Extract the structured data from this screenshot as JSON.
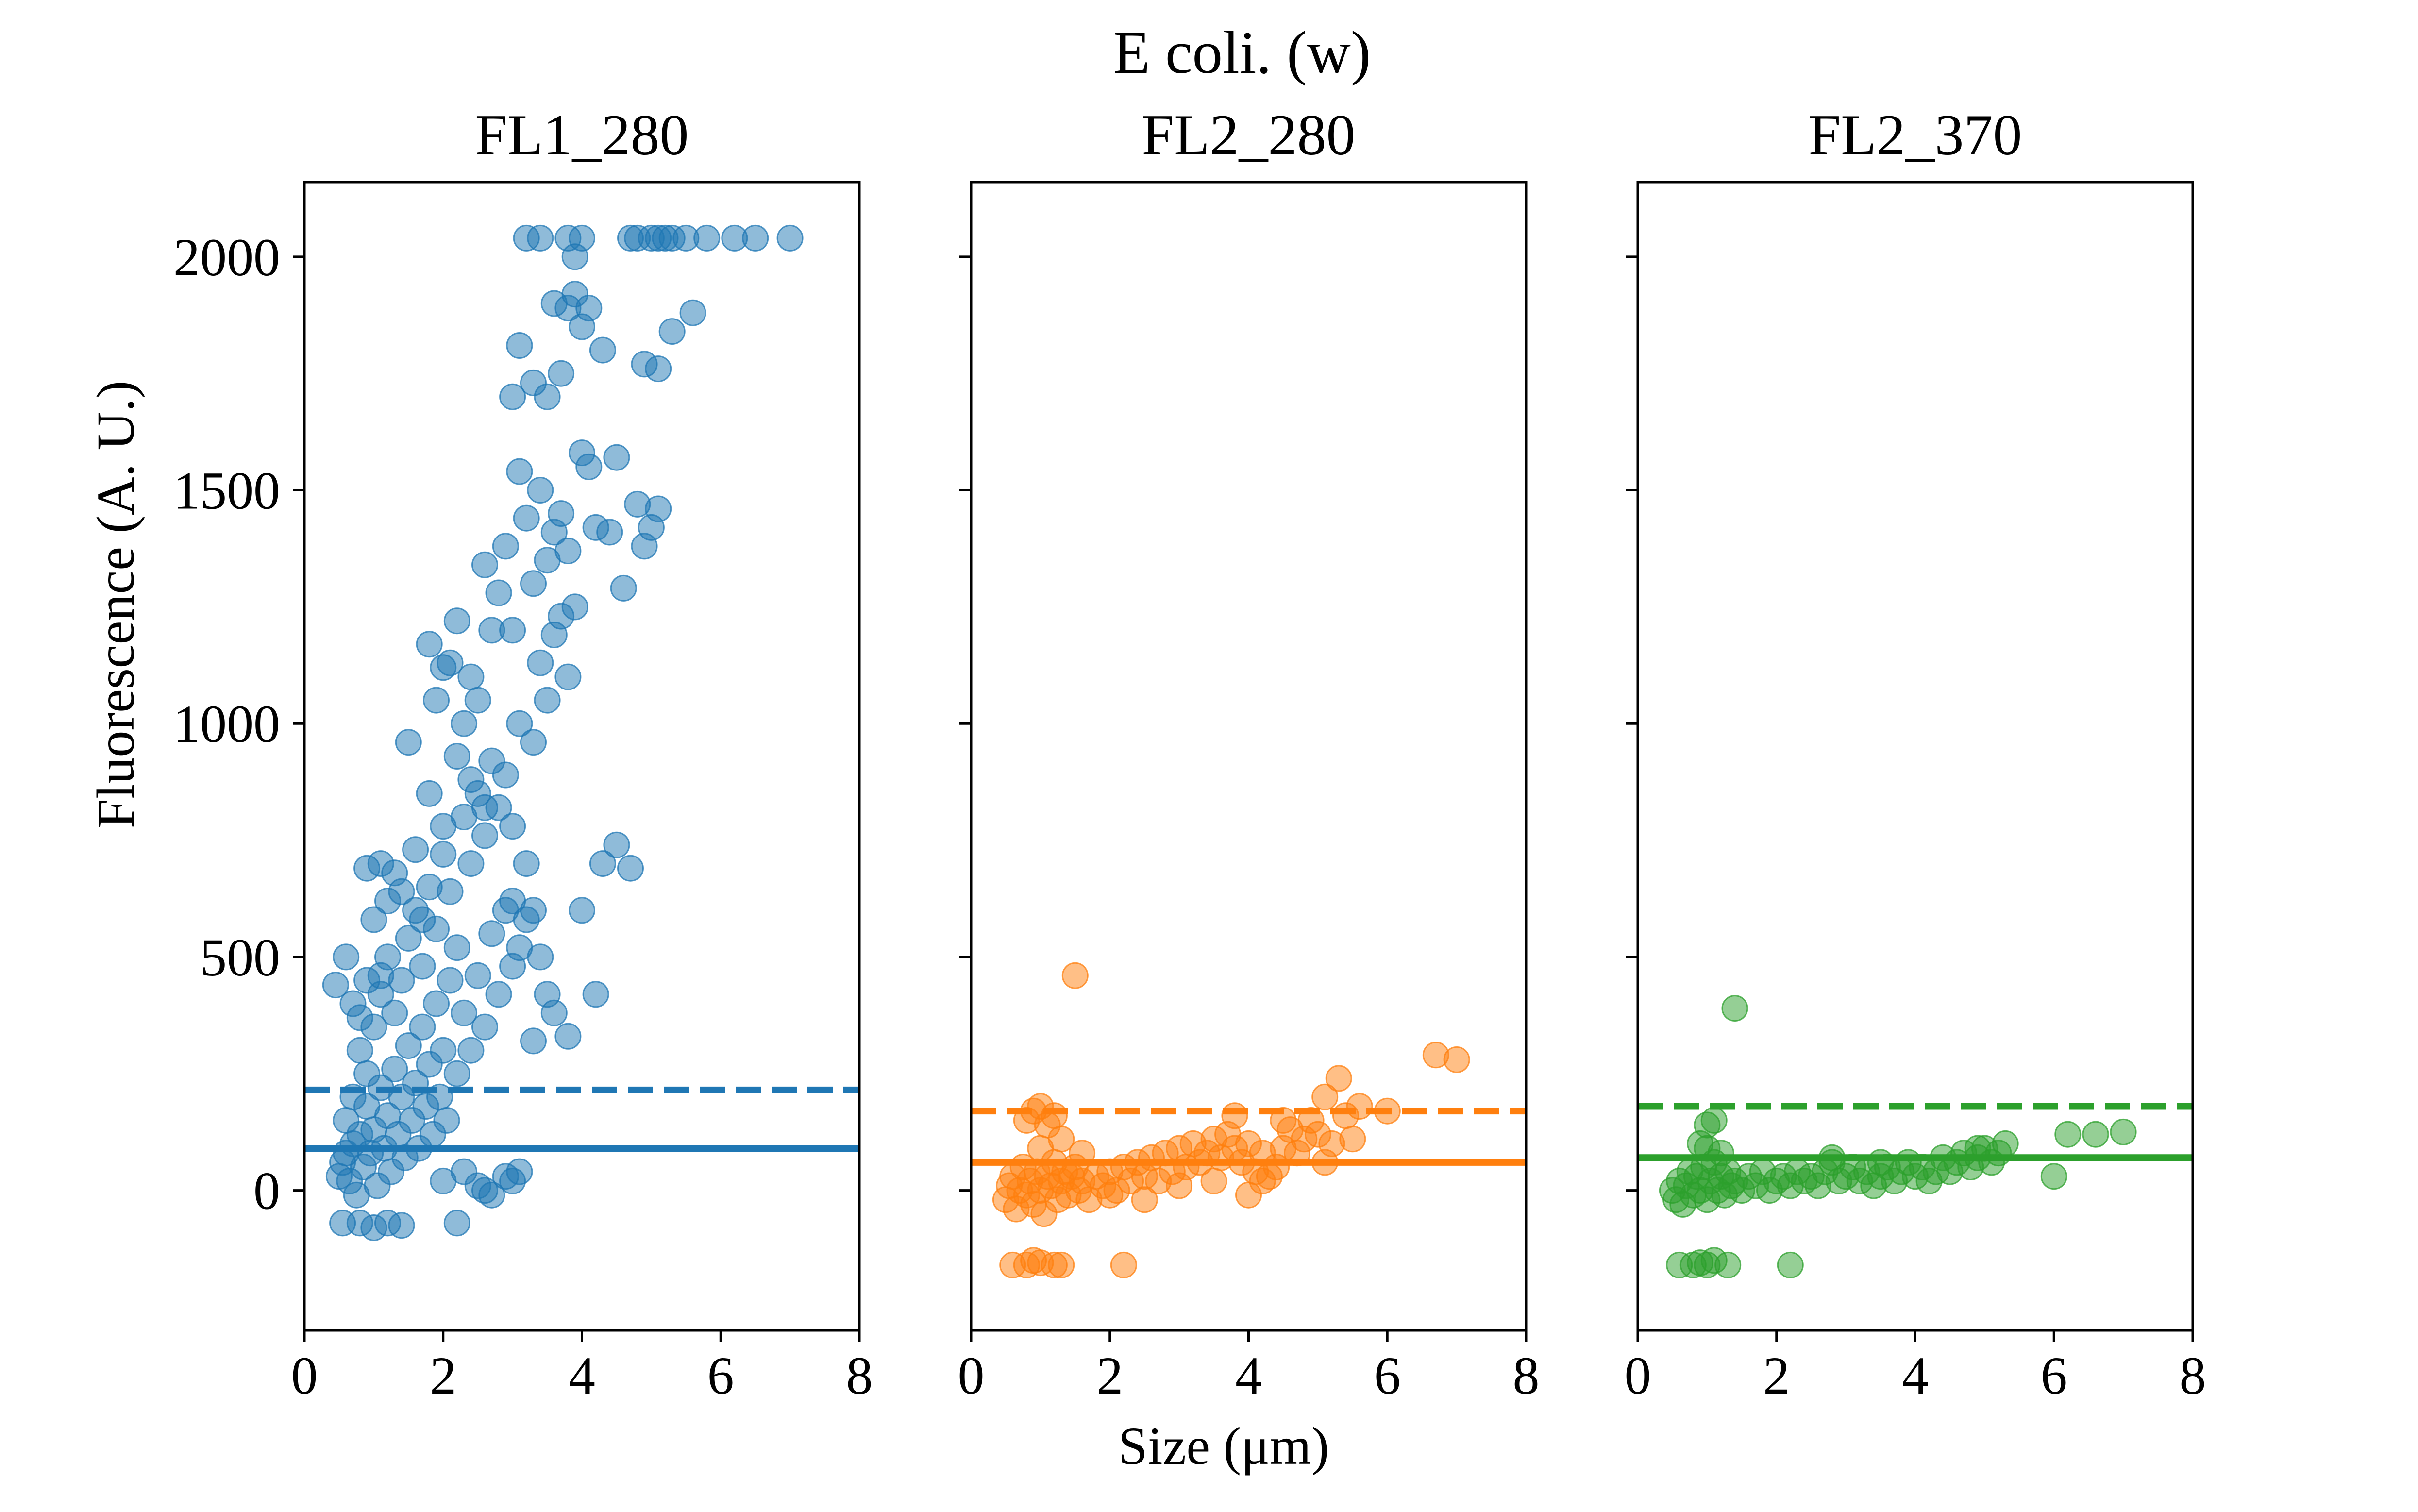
{
  "figure": {
    "title": "E coli. (w)",
    "xlabel": "Size (μm)",
    "ylabel": "Fluorescence (A. U.)"
  },
  "chart_data": [
    {
      "type": "scatter",
      "title": "FL1_280",
      "color": "#1f77b4",
      "xlim": [
        0,
        8
      ],
      "ylim": [
        -300,
        2160
      ],
      "xticks": [
        0,
        2,
        4,
        6,
        8
      ],
      "yticks": [
        0,
        500,
        1000,
        1500,
        2000
      ],
      "show_yticklabels": true,
      "mean_line": 90,
      "threshold_line": 215,
      "points": [
        [
          0.5,
          30
        ],
        [
          0.55,
          60
        ],
        [
          0.6,
          80
        ],
        [
          0.6,
          150
        ],
        [
          0.65,
          20
        ],
        [
          0.7,
          100
        ],
        [
          0.7,
          200
        ],
        [
          0.75,
          -10
        ],
        [
          0.8,
          120
        ],
        [
          0.8,
          300
        ],
        [
          0.85,
          50
        ],
        [
          0.9,
          180
        ],
        [
          0.9,
          250
        ],
        [
          0.95,
          80
        ],
        [
          1.0,
          130
        ],
        [
          1.0,
          350
        ],
        [
          1.05,
          10
        ],
        [
          1.1,
          220
        ],
        [
          1.1,
          420
        ],
        [
          1.15,
          90
        ],
        [
          1.2,
          160
        ],
        [
          1.2,
          500
        ],
        [
          1.25,
          40
        ],
        [
          1.3,
          260
        ],
        [
          1.3,
          380
        ],
        [
          1.35,
          120
        ],
        [
          1.4,
          200
        ],
        [
          1.4,
          450
        ],
        [
          1.45,
          70
        ],
        [
          1.5,
          310
        ],
        [
          1.5,
          540
        ],
        [
          1.55,
          150
        ],
        [
          1.6,
          230
        ],
        [
          1.6,
          600
        ],
        [
          1.65,
          90
        ],
        [
          1.7,
          350
        ],
        [
          1.7,
          480
        ],
        [
          1.75,
          180
        ],
        [
          1.8,
          270
        ],
        [
          1.8,
          650
        ],
        [
          1.85,
          120
        ],
        [
          1.9,
          400
        ],
        [
          1.9,
          560
        ],
        [
          1.95,
          200
        ],
        [
          2.0,
          300
        ],
        [
          2.0,
          720
        ],
        [
          2.05,
          150
        ],
        [
          2.1,
          450
        ],
        [
          2.1,
          640
        ],
        [
          2.2,
          250
        ],
        [
          2.2,
          520
        ],
        [
          2.3,
          380
        ],
        [
          2.3,
          800
        ],
        [
          2.4,
          300
        ],
        [
          2.4,
          700
        ],
        [
          2.5,
          460
        ],
        [
          2.5,
          850
        ],
        [
          2.6,
          350
        ],
        [
          2.6,
          760
        ],
        [
          2.7,
          550
        ],
        [
          2.8,
          420
        ],
        [
          2.8,
          820
        ],
        [
          2.9,
          600
        ],
        [
          3.0,
          480
        ],
        [
          3.0,
          780
        ],
        [
          3.1,
          520
        ],
        [
          3.2,
          700
        ],
        [
          3.3,
          600
        ],
        [
          0.45,
          440
        ],
        [
          0.55,
          -70
        ],
        [
          0.8,
          -70
        ],
        [
          1.0,
          -80
        ],
        [
          1.2,
          -70
        ],
        [
          1.4,
          -75
        ],
        [
          2.2,
          -70
        ],
        [
          0.9,
          690
        ],
        [
          1.1,
          700
        ],
        [
          1.2,
          620
        ],
        [
          1.5,
          960
        ],
        [
          1.8,
          1170
        ],
        [
          1.9,
          1050
        ],
        [
          2.0,
          1120
        ],
        [
          2.1,
          1130
        ],
        [
          2.2,
          1220
        ],
        [
          2.3,
          1000
        ],
        [
          2.4,
          1100
        ],
        [
          2.5,
          1050
        ],
        [
          2.6,
          1340
        ],
        [
          2.7,
          1200
        ],
        [
          2.8,
          1280
        ],
        [
          2.9,
          1380
        ],
        [
          3.0,
          1200
        ],
        [
          3.1,
          1540
        ],
        [
          3.2,
          1440
        ],
        [
          3.3,
          1300
        ],
        [
          3.4,
          1500
        ],
        [
          3.5,
          1350
        ],
        [
          3.6,
          1410
        ],
        [
          3.7,
          1450
        ],
        [
          3.8,
          1370
        ],
        [
          3.9,
          1250
        ],
        [
          4.0,
          1580
        ],
        [
          4.1,
          1550
        ],
        [
          4.2,
          1420
        ],
        [
          4.4,
          1410
        ],
        [
          4.5,
          1570
        ],
        [
          4.6,
          1290
        ],
        [
          4.8,
          1470
        ],
        [
          4.9,
          1380
        ],
        [
          5.0,
          1420
        ],
        [
          5.1,
          1460
        ],
        [
          3.0,
          1700
        ],
        [
          3.1,
          1810
        ],
        [
          3.3,
          1730
        ],
        [
          3.5,
          1700
        ],
        [
          3.7,
          1750
        ],
        [
          3.6,
          1900
        ],
        [
          3.8,
          1890
        ],
        [
          3.9,
          1920
        ],
        [
          4.0,
          1850
        ],
        [
          4.1,
          1890
        ],
        [
          4.3,
          1800
        ],
        [
          4.9,
          1770
        ],
        [
          5.1,
          1760
        ],
        [
          5.3,
          1840
        ],
        [
          5.6,
          1880
        ],
        [
          3.2,
          2040
        ],
        [
          3.4,
          2040
        ],
        [
          3.8,
          2040
        ],
        [
          3.9,
          2000
        ],
        [
          4.0,
          2040
        ],
        [
          4.7,
          2040
        ],
        [
          4.8,
          2040
        ],
        [
          5.0,
          2040
        ],
        [
          5.1,
          2040
        ],
        [
          5.2,
          2040
        ],
        [
          5.3,
          2040
        ],
        [
          5.5,
          2040
        ],
        [
          5.8,
          2040
        ],
        [
          6.2,
          2040
        ],
        [
          6.5,
          2040
        ],
        [
          7.0,
          2040
        ],
        [
          3.0,
          620
        ],
        [
          3.2,
          580
        ],
        [
          3.4,
          500
        ],
        [
          3.5,
          420
        ],
        [
          3.3,
          320
        ],
        [
          3.6,
          380
        ],
        [
          3.8,
          330
        ],
        [
          4.0,
          600
        ],
        [
          4.2,
          420
        ],
        [
          4.3,
          700
        ],
        [
          4.5,
          740
        ],
        [
          4.7,
          690
        ],
        [
          2.9,
          30
        ],
        [
          3.0,
          20
        ],
        [
          3.1,
          40
        ],
        [
          2.5,
          10
        ],
        [
          2.6,
          0
        ],
        [
          2.7,
          -10
        ],
        [
          2.0,
          20
        ],
        [
          2.3,
          40
        ],
        [
          0.6,
          500
        ],
        [
          0.7,
          400
        ],
        [
          0.8,
          370
        ],
        [
          0.9,
          450
        ],
        [
          1.0,
          580
        ],
        [
          1.1,
          460
        ],
        [
          1.3,
          680
        ],
        [
          1.4,
          640
        ],
        [
          1.6,
          730
        ],
        [
          1.7,
          580
        ],
        [
          1.8,
          850
        ],
        [
          2.0,
          780
        ],
        [
          2.2,
          930
        ],
        [
          2.4,
          880
        ],
        [
          2.6,
          820
        ],
        [
          2.7,
          920
        ],
        [
          2.9,
          890
        ],
        [
          3.1,
          1000
        ],
        [
          3.3,
          960
        ],
        [
          3.4,
          1130
        ],
        [
          3.5,
          1050
        ],
        [
          3.6,
          1190
        ],
        [
          3.7,
          1230
        ],
        [
          3.8,
          1100
        ]
      ]
    },
    {
      "type": "scatter",
      "title": "FL2_280",
      "color": "#ff7f0e",
      "xlim": [
        0,
        8
      ],
      "ylim": [
        -300,
        2160
      ],
      "xticks": [
        0,
        2,
        4,
        6,
        8
      ],
      "yticks": [
        0,
        500,
        1000,
        1500,
        2000
      ],
      "show_yticklabels": false,
      "mean_line": 60,
      "threshold_line": 170,
      "points": [
        [
          0.5,
          -20
        ],
        [
          0.55,
          10
        ],
        [
          0.6,
          30
        ],
        [
          0.65,
          -40
        ],
        [
          0.7,
          0
        ],
        [
          0.75,
          50
        ],
        [
          0.8,
          -10
        ],
        [
          0.85,
          20
        ],
        [
          0.9,
          -30
        ],
        [
          0.95,
          40
        ],
        [
          1.0,
          0
        ],
        [
          1.05,
          -50
        ],
        [
          1.1,
          30
        ],
        [
          1.15,
          10
        ],
        [
          1.2,
          60
        ],
        [
          1.25,
          -20
        ],
        [
          1.3,
          20
        ],
        [
          1.35,
          40
        ],
        [
          1.4,
          -10
        ],
        [
          1.45,
          30
        ],
        [
          1.5,
          50
        ],
        [
          1.55,
          0
        ],
        [
          1.6,
          20
        ],
        [
          1.7,
          -20
        ],
        [
          1.8,
          30
        ],
        [
          1.9,
          10
        ],
        [
          2.0,
          40
        ],
        [
          2.1,
          0
        ],
        [
          2.2,
          50
        ],
        [
          2.3,
          20
        ],
        [
          2.4,
          60
        ],
        [
          2.5,
          30
        ],
        [
          2.6,
          70
        ],
        [
          2.7,
          20
        ],
        [
          2.8,
          80
        ],
        [
          2.9,
          40
        ],
        [
          3.0,
          90
        ],
        [
          3.1,
          50
        ],
        [
          3.2,
          100
        ],
        [
          3.3,
          60
        ],
        [
          3.4,
          80
        ],
        [
          3.5,
          110
        ],
        [
          3.6,
          70
        ],
        [
          3.7,
          120
        ],
        [
          3.8,
          90
        ],
        [
          3.9,
          60
        ],
        [
          4.0,
          100
        ],
        [
          4.1,
          40
        ],
        [
          4.2,
          80
        ],
        [
          4.3,
          30
        ],
        [
          4.4,
          50
        ],
        [
          4.5,
          90
        ],
        [
          4.6,
          130
        ],
        [
          4.7,
          80
        ],
        [
          4.8,
          110
        ],
        [
          4.9,
          150
        ],
        [
          5.0,
          120
        ],
        [
          5.1,
          60
        ],
        [
          5.2,
          100
        ],
        [
          5.4,
          160
        ],
        [
          5.5,
          110
        ],
        [
          0.8,
          150
        ],
        [
          0.9,
          170
        ],
        [
          1.0,
          180
        ],
        [
          1.1,
          140
        ],
        [
          1.2,
          160
        ],
        [
          1.5,
          460
        ],
        [
          3.8,
          160
        ],
        [
          4.5,
          150
        ],
        [
          5.6,
          180
        ],
        [
          6.0,
          170
        ],
        [
          6.7,
          290
        ],
        [
          7.0,
          280
        ],
        [
          5.1,
          200
        ],
        [
          5.3,
          240
        ],
        [
          0.6,
          -160
        ],
        [
          0.8,
          -160
        ],
        [
          0.9,
          -150
        ],
        [
          1.0,
          -155
        ],
        [
          1.2,
          -160
        ],
        [
          1.3,
          -160
        ],
        [
          2.2,
          -160
        ],
        [
          1.0,
          90
        ],
        [
          1.3,
          110
        ],
        [
          1.6,
          80
        ],
        [
          2.0,
          -10
        ],
        [
          2.5,
          -20
        ],
        [
          3.0,
          10
        ],
        [
          3.5,
          20
        ],
        [
          4.0,
          -10
        ],
        [
          4.2,
          20
        ]
      ]
    },
    {
      "type": "scatter",
      "title": "FL2_370",
      "color": "#2ca02c",
      "xlim": [
        0,
        8
      ],
      "ylim": [
        -300,
        2160
      ],
      "xticks": [
        0,
        2,
        4,
        6,
        8
      ],
      "yticks": [
        0,
        500,
        1000,
        1500,
        2000
      ],
      "show_yticklabels": false,
      "mean_line": 70,
      "threshold_line": 180,
      "points": [
        [
          0.5,
          0
        ],
        [
          0.55,
          -20
        ],
        [
          0.6,
          20
        ],
        [
          0.65,
          -30
        ],
        [
          0.7,
          10
        ],
        [
          0.75,
          40
        ],
        [
          0.8,
          -10
        ],
        [
          0.85,
          30
        ],
        [
          0.9,
          0
        ],
        [
          0.95,
          50
        ],
        [
          1.0,
          -20
        ],
        [
          1.05,
          20
        ],
        [
          1.1,
          60
        ],
        [
          1.15,
          0
        ],
        [
          1.2,
          30
        ],
        [
          1.25,
          -10
        ],
        [
          1.3,
          40
        ],
        [
          1.35,
          10
        ],
        [
          1.4,
          20
        ],
        [
          1.5,
          0
        ],
        [
          1.6,
          30
        ],
        [
          1.7,
          10
        ],
        [
          1.8,
          40
        ],
        [
          1.9,
          0
        ],
        [
          2.0,
          20
        ],
        [
          2.1,
          30
        ],
        [
          2.2,
          10
        ],
        [
          2.3,
          40
        ],
        [
          2.4,
          20
        ],
        [
          2.5,
          30
        ],
        [
          2.6,
          10
        ],
        [
          2.7,
          40
        ],
        [
          2.8,
          60
        ],
        [
          2.9,
          20
        ],
        [
          3.0,
          30
        ],
        [
          3.1,
          50
        ],
        [
          3.2,
          20
        ],
        [
          3.3,
          40
        ],
        [
          3.4,
          10
        ],
        [
          3.5,
          30
        ],
        [
          3.6,
          50
        ],
        [
          3.7,
          20
        ],
        [
          3.8,
          40
        ],
        [
          3.9,
          60
        ],
        [
          4.0,
          30
        ],
        [
          4.1,
          50
        ],
        [
          4.2,
          20
        ],
        [
          4.3,
          40
        ],
        [
          4.4,
          70
        ],
        [
          4.5,
          40
        ],
        [
          4.6,
          60
        ],
        [
          4.7,
          80
        ],
        [
          4.8,
          50
        ],
        [
          4.9,
          70
        ],
        [
          5.0,
          90
        ],
        [
          5.1,
          60
        ],
        [
          5.2,
          80
        ],
        [
          5.3,
          100
        ],
        [
          1.0,
          140
        ],
        [
          1.1,
          150
        ],
        [
          1.4,
          390
        ],
        [
          6.2,
          120
        ],
        [
          6.6,
          120
        ],
        [
          7.0,
          125
        ],
        [
          6.0,
          30
        ],
        [
          0.6,
          -160
        ],
        [
          0.8,
          -160
        ],
        [
          0.9,
          -155
        ],
        [
          1.0,
          -160
        ],
        [
          1.1,
          -150
        ],
        [
          1.3,
          -160
        ],
        [
          2.2,
          -160
        ],
        [
          1.0,
          90
        ],
        [
          1.2,
          80
        ],
        [
          0.9,
          100
        ],
        [
          2.8,
          70
        ],
        [
          3.5,
          60
        ],
        [
          4.9,
          90
        ]
      ]
    }
  ]
}
